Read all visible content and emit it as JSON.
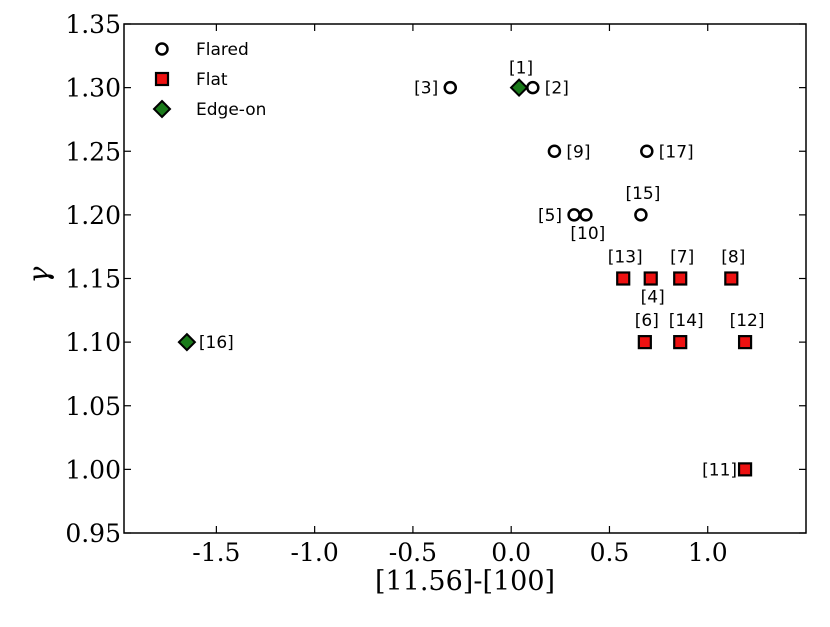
{
  "chart_data": {
    "type": "scatter",
    "title": "",
    "xlabel": "[11.56]-[100]",
    "ylabel": "γ",
    "xlim": [
      -1.97,
      1.5
    ],
    "ylim": [
      0.95,
      1.35
    ],
    "xticks": [
      -1.5,
      -1.0,
      -0.5,
      0.0,
      0.5,
      1.0
    ],
    "xtick_labels": [
      "-1.5",
      "-1.0",
      "-0.5",
      "0.0",
      "0.5",
      "1.0"
    ],
    "yticks": [
      0.95,
      1.0,
      1.05,
      1.1,
      1.15,
      1.2,
      1.25,
      1.3,
      1.35
    ],
    "ytick_labels": [
      "0.95",
      "1.00",
      "1.05",
      "1.10",
      "1.15",
      "1.20",
      "1.25",
      "1.30",
      "1.35"
    ],
    "grid": false,
    "legend": {
      "position": "top-left"
    },
    "colors": {
      "flat_fill": "#ee1111",
      "edge_fill": "#1a7a1a",
      "flared_fill": "#ffffff",
      "stroke": "#000000"
    },
    "series": [
      {
        "name": "Flared",
        "marker": "circle",
        "points": [
          {
            "x": 0.11,
            "y": 1.3,
            "label": "[2]"
          },
          {
            "x": -0.31,
            "y": 1.3,
            "label": "[3]"
          },
          {
            "x": 0.22,
            "y": 1.25,
            "label": "[9]"
          },
          {
            "x": 0.69,
            "y": 1.25,
            "label": "[17]"
          },
          {
            "x": 0.32,
            "y": 1.2,
            "label": "[5]"
          },
          {
            "x": 0.38,
            "y": 1.2,
            "label": "[10]"
          },
          {
            "x": 0.66,
            "y": 1.2,
            "label": "[15]"
          }
        ]
      },
      {
        "name": "Flat",
        "marker": "square",
        "points": [
          {
            "x": 0.57,
            "y": 1.15,
            "label": "[13]"
          },
          {
            "x": 0.71,
            "y": 1.15,
            "label": "[4]"
          },
          {
            "x": 0.86,
            "y": 1.15,
            "label": "[7]"
          },
          {
            "x": 1.12,
            "y": 1.15,
            "label": "[8]"
          },
          {
            "x": 0.68,
            "y": 1.1,
            "label": "[6]"
          },
          {
            "x": 0.86,
            "y": 1.1,
            "label": "[14]"
          },
          {
            "x": 1.19,
            "y": 1.1,
            "label": "[12]"
          },
          {
            "x": 1.19,
            "y": 1.0,
            "label": "[11]"
          }
        ]
      },
      {
        "name": "Edge-on",
        "marker": "diamond",
        "points": [
          {
            "x": 0.04,
            "y": 1.3,
            "label": "[1]"
          },
          {
            "x": -1.65,
            "y": 1.1,
            "label": "[16]"
          }
        ]
      }
    ]
  }
}
